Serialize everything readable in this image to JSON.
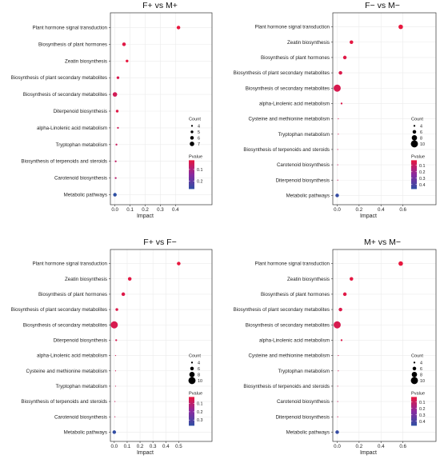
{
  "colors": {
    "pvalue_high": "#e8173e",
    "pvalue_mid": "#8a2aa0",
    "pvalue_low": "#2e4fa3"
  },
  "chart_data": [
    {
      "type": "scatter",
      "title": "F+ vs M+",
      "xlabel": "Impact",
      "ylabel": "",
      "xlim": [
        -0.03,
        0.43
      ],
      "xticks": [
        0.0,
        0.1,
        0.2,
        0.3,
        0.4
      ],
      "xtick_labels": [
        "0.0",
        "0.1",
        "0.2",
        "0.3",
        "0.4"
      ],
      "grid": true,
      "count_legend": {
        "title": "Count",
        "values": [
          4,
          5,
          6,
          7
        ]
      },
      "pvalue_legend": {
        "title": "Pvalue",
        "min": 0.02,
        "max": 0.27,
        "ticks": [
          0.1,
          0.2
        ],
        "tick_labels": [
          "0.1",
          "0.2"
        ]
      },
      "points": [
        {
          "pathway": "Plant hormone signal transduction",
          "impact": 0.42,
          "count": 6,
          "pvalue": 0.02
        },
        {
          "pathway": "Biosynthesis of plant hormones",
          "impact": 0.06,
          "count": 6,
          "pvalue": 0.03
        },
        {
          "pathway": "Zeatin biosynthesis",
          "impact": 0.08,
          "count": 5,
          "pvalue": 0.02
        },
        {
          "pathway": "Biosynthesis of plant secondary metabolites",
          "impact": 0.02,
          "count": 5,
          "pvalue": 0.04
        },
        {
          "pathway": "Biosynthesis of secondary metabolites",
          "impact": 0.0,
          "count": 7,
          "pvalue": 0.05
        },
        {
          "pathway": "Diterpenoid biosynthesis",
          "impact": 0.015,
          "count": 5,
          "pvalue": 0.03
        },
        {
          "pathway": "alpha-Linolenic acid metabolism",
          "impact": 0.02,
          "count": 4,
          "pvalue": 0.05
        },
        {
          "pathway": "Tryptophan metabolism",
          "impact": 0.01,
          "count": 4,
          "pvalue": 0.06
        },
        {
          "pathway": "Biosynthesis of terpenoids and steroids",
          "impact": 0.005,
          "count": 4,
          "pvalue": 0.07
        },
        {
          "pathway": "Carotenoid biosynthesis",
          "impact": 0.005,
          "count": 4,
          "pvalue": 0.08
        },
        {
          "pathway": "Metabolic pathways",
          "impact": 0.0,
          "count": 6,
          "pvalue": 0.27
        }
      ]
    },
    {
      "type": "scatter",
      "title": "F− vs M−",
      "xlabel": "Impact",
      "ylabel": "",
      "xlim": [
        -0.04,
        0.61
      ],
      "xticks": [
        0.0,
        0.2,
        0.4,
        0.6
      ],
      "xtick_labels": [
        "0.0",
        "0.2",
        "0.4",
        "0.6"
      ],
      "grid": true,
      "count_legend": {
        "title": "Count",
        "values": [
          4,
          6,
          8,
          10
        ]
      },
      "pvalue_legend": {
        "title": "Pvalue",
        "min": 0.02,
        "max": 0.47,
        "ticks": [
          0.1,
          0.2,
          0.3,
          0.4
        ],
        "tick_labels": [
          "0.1",
          "0.2",
          "0.3",
          "0.4"
        ]
      },
      "points": [
        {
          "pathway": "Plant hormone signal transduction",
          "impact": 0.58,
          "count": 7,
          "pvalue": 0.02
        },
        {
          "pathway": "Zeatin biosynthesis",
          "impact": 0.13,
          "count": 6,
          "pvalue": 0.03
        },
        {
          "pathway": "Biosynthesis of plant hormones",
          "impact": 0.07,
          "count": 6,
          "pvalue": 0.04
        },
        {
          "pathway": "Biosynthesis of plant secondary metabolites",
          "impact": 0.03,
          "count": 6,
          "pvalue": 0.05
        },
        {
          "pathway": "Biosynthesis of secondary metabolites",
          "impact": 0.0,
          "count": 10,
          "pvalue": 0.06
        },
        {
          "pathway": "alpha-Linolenic acid metabolism",
          "impact": 0.04,
          "count": 4,
          "pvalue": 0.05
        },
        {
          "pathway": "Cysteine and methionine metabolism",
          "impact": 0.01,
          "count": 3,
          "pvalue": 0.08
        },
        {
          "pathway": "Tryptophan metabolism",
          "impact": 0.01,
          "count": 3,
          "pvalue": 0.08
        },
        {
          "pathway": "Biosynthesis of terpenoids and steroids",
          "impact": 0.005,
          "count": 3,
          "pvalue": 0.09
        },
        {
          "pathway": "Carotenoid biosynthesis",
          "impact": 0.005,
          "count": 3,
          "pvalue": 0.1
        },
        {
          "pathway": "Diterpenoid biosynthesis",
          "impact": 0.005,
          "count": 3,
          "pvalue": 0.1
        },
        {
          "pathway": "Metabolic pathways",
          "impact": 0.0,
          "count": 6,
          "pvalue": 0.45
        }
      ]
    },
    {
      "type": "scatter",
      "title": "F+ vs F−",
      "xlabel": "Impact",
      "ylabel": "",
      "xlim": [
        -0.03,
        0.51
      ],
      "xticks": [
        0.0,
        0.1,
        0.2,
        0.3,
        0.4,
        0.5
      ],
      "xtick_labels": [
        "0.0",
        "0.1",
        "0.2",
        "0.3",
        "0.4",
        "0.5"
      ],
      "grid": true,
      "count_legend": {
        "title": "Count",
        "values": [
          4,
          6,
          8,
          10
        ]
      },
      "pvalue_legend": {
        "title": "Pvalue",
        "min": 0.02,
        "max": 0.37,
        "ticks": [
          0.1,
          0.2,
          0.3
        ],
        "tick_labels": [
          "0.1",
          "0.2",
          "0.3"
        ]
      },
      "points": [
        {
          "pathway": "Plant hormone signal transduction",
          "impact": 0.5,
          "count": 6,
          "pvalue": 0.02
        },
        {
          "pathway": "Zeatin biosynthesis",
          "impact": 0.12,
          "count": 6,
          "pvalue": 0.03
        },
        {
          "pathway": "Biosynthesis of plant hormones",
          "impact": 0.07,
          "count": 6,
          "pvalue": 0.04
        },
        {
          "pathway": "Biosynthesis of plant secondary metabolites",
          "impact": 0.02,
          "count": 5,
          "pvalue": 0.04
        },
        {
          "pathway": "Biosynthesis of secondary metabolites",
          "impact": 0.0,
          "count": 10,
          "pvalue": 0.05
        },
        {
          "pathway": "Diterpenoid biosynthesis",
          "impact": 0.015,
          "count": 4,
          "pvalue": 0.05
        },
        {
          "pathway": "alpha-Linolenic acid metabolism",
          "impact": 0.01,
          "count": 3,
          "pvalue": 0.06
        },
        {
          "pathway": "Cysteine and methionine metabolism",
          "impact": 0.01,
          "count": 3,
          "pvalue": 0.06
        },
        {
          "pathway": "Tryptophan metabolism",
          "impact": 0.01,
          "count": 3,
          "pvalue": 0.07
        },
        {
          "pathway": "Biosynthesis of terpenoids and steroids",
          "impact": 0.005,
          "count": 3,
          "pvalue": 0.08
        },
        {
          "pathway": "Carotenoid biosynthesis",
          "impact": 0.005,
          "count": 3,
          "pvalue": 0.08
        },
        {
          "pathway": "Metabolic pathways",
          "impact": 0.0,
          "count": 6,
          "pvalue": 0.36
        }
      ]
    },
    {
      "type": "scatter",
      "title": "M+ vs M−",
      "xlabel": "Impact",
      "ylabel": "",
      "xlim": [
        -0.04,
        0.61
      ],
      "xticks": [
        0.0,
        0.2,
        0.4,
        0.6
      ],
      "xtick_labels": [
        "0.0",
        "0.2",
        "0.4",
        "0.6"
      ],
      "grid": true,
      "count_legend": {
        "title": "Count",
        "values": [
          4,
          6,
          8,
          10
        ]
      },
      "pvalue_legend": {
        "title": "Pvalue",
        "min": 0.02,
        "max": 0.47,
        "ticks": [
          0.1,
          0.2,
          0.3,
          0.4
        ],
        "tick_labels": [
          "0.1",
          "0.2",
          "0.3",
          "0.4"
        ]
      },
      "points": [
        {
          "pathway": "Plant hormone signal transduction",
          "impact": 0.58,
          "count": 7,
          "pvalue": 0.02
        },
        {
          "pathway": "Zeatin biosynthesis",
          "impact": 0.13,
          "count": 6,
          "pvalue": 0.03
        },
        {
          "pathway": "Biosynthesis of plant hormones",
          "impact": 0.07,
          "count": 6,
          "pvalue": 0.04
        },
        {
          "pathway": "Biosynthesis of plant secondary metabolites",
          "impact": 0.03,
          "count": 6,
          "pvalue": 0.05
        },
        {
          "pathway": "Biosynthesis of secondary metabolites",
          "impact": 0.0,
          "count": 10,
          "pvalue": 0.06
        },
        {
          "pathway": "alpha-Linolenic acid metabolism",
          "impact": 0.04,
          "count": 4,
          "pvalue": 0.05
        },
        {
          "pathway": "Cysteine and methionine metabolism",
          "impact": 0.01,
          "count": 3,
          "pvalue": 0.08
        },
        {
          "pathway": "Tryptophan metabolism",
          "impact": 0.01,
          "count": 3,
          "pvalue": 0.08
        },
        {
          "pathway": "Biosynthesis of terpenoids and steroids",
          "impact": 0.005,
          "count": 3,
          "pvalue": 0.09
        },
        {
          "pathway": "Carotenoid biosynthesis",
          "impact": 0.005,
          "count": 3,
          "pvalue": 0.1
        },
        {
          "pathway": "Diterpenoid biosynthesis",
          "impact": 0.005,
          "count": 3,
          "pvalue": 0.1
        },
        {
          "pathway": "Metabolic pathways",
          "impact": 0.0,
          "count": 6,
          "pvalue": 0.45
        }
      ]
    }
  ]
}
